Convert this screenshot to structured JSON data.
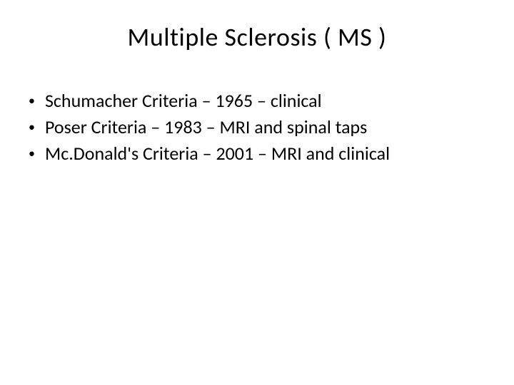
{
  "slide": {
    "title": "Multiple Sclerosis ( MS )",
    "title_fontsize": 36,
    "title_color": "#000000",
    "background_color": "#ffffff",
    "body_fontsize": 26,
    "body_color": "#000000",
    "bullets": [
      {
        "text": "Schumacher Criteria – 1965 – clinical"
      },
      {
        "text": "Poser Criteria – 1983 – MRI and spinal taps"
      },
      {
        "text": "Mc.Donald's Criteria – 2001 –  MRI and clinical"
      }
    ]
  }
}
